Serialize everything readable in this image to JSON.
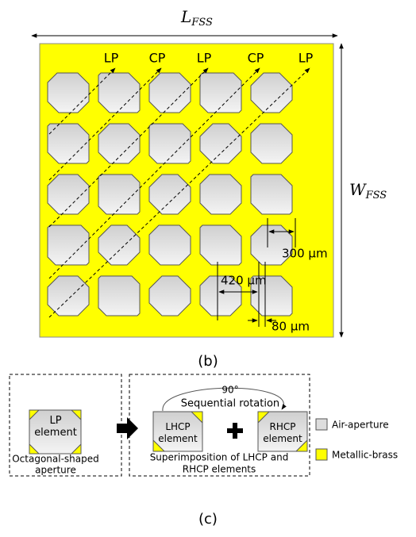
{
  "figure_b": {
    "width_label": {
      "main": "L",
      "sub": "FSS"
    },
    "height_label": {
      "main": "W",
      "sub": "FSS"
    },
    "diagonal_labels": [
      "LP",
      "CP",
      "LP",
      "CP",
      "LP"
    ],
    "dimensions": [
      "300 μm",
      "420 μm",
      "80 μm"
    ],
    "caption": "(b)"
  },
  "figure_c": {
    "lp_element": "LP element",
    "lp_caption": [
      "Octagonal-shaped",
      "aperture"
    ],
    "angle": "90°",
    "rotation_label": "Sequential rotation",
    "lhcp_element": "LHCP element",
    "rhcp_element": "RHCP element",
    "superimposition_caption": [
      "Superimposition of LHCP and",
      "RHCP elements"
    ],
    "legend": [
      "Air-aperture",
      "Metallic-brass"
    ],
    "caption": "(c)"
  }
}
